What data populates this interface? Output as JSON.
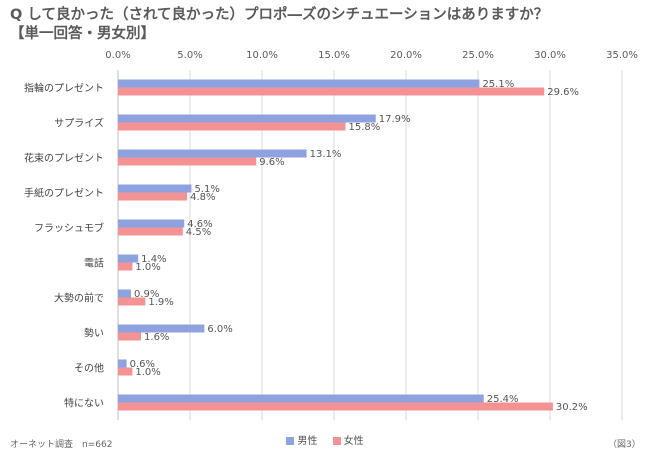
{
  "title": {
    "line1": "Q して良かった（されて良かった）プロポ―ズのシチュエーションはありますか？",
    "line2": "【単一回答・男女別】"
  },
  "footer": {
    "source": "オーネット調査　n=662",
    "figure": "（図3）"
  },
  "colors": {
    "male": "#8fa2e0",
    "female": "#f59394",
    "grid": "#d9d9d9",
    "axis": "#bfbfbf"
  },
  "chart_data": {
    "type": "bar",
    "orientation": "horizontal",
    "categories": [
      "指輪のプレゼント",
      "サプライズ",
      "花束のプレゼント",
      "手紙のプレゼント",
      "フラッシュモブ",
      "電話",
      "大勢の前で",
      "勢い",
      "その他",
      "特にない"
    ],
    "series": [
      {
        "name": "男性",
        "values": [
          25.1,
          17.9,
          13.1,
          5.1,
          4.6,
          1.4,
          0.9,
          6.0,
          0.6,
          25.4
        ]
      },
      {
        "name": "女性",
        "values": [
          29.6,
          15.8,
          9.6,
          4.8,
          4.5,
          1.0,
          1.9,
          1.6,
          1.0,
          30.2
        ]
      }
    ],
    "xticks": [
      "0.0%",
      "5.0%",
      "10.0%",
      "15.0%",
      "20.0%",
      "25.0%",
      "30.0%",
      "35.0%"
    ],
    "xlim": [
      0,
      35
    ],
    "value_suffix": "%",
    "xaxis_position": "top",
    "grid": true,
    "legend_position": "bottom-center"
  }
}
